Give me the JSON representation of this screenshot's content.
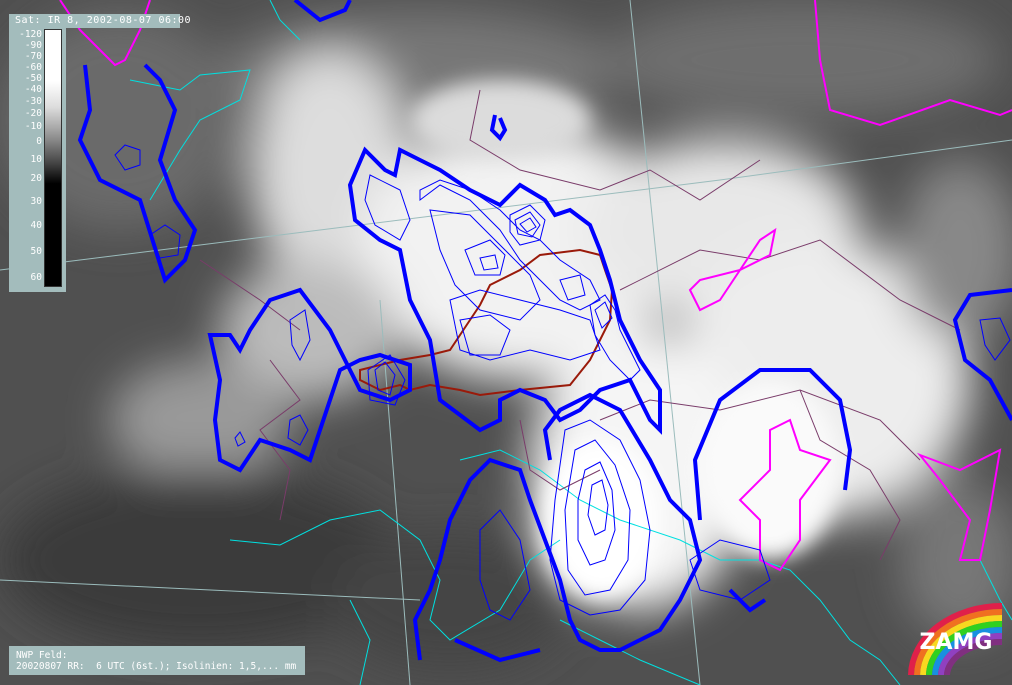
{
  "header": {
    "sat_title": "Sat: IR 8, 2002-08-07 06:00"
  },
  "scale": {
    "ticks": [
      "-120",
      "-90",
      "-70",
      "-60",
      "-50",
      "-40",
      "-30",
      "-20",
      "-10",
      "0",
      "10",
      "20",
      "30",
      "40",
      "50",
      "60"
    ]
  },
  "footer": {
    "line1": "NWP Feld:",
    "line2": "20020807 RR:  6 UTC (6st.); Isolinien: 1,5,... mm"
  },
  "logo": {
    "text": "ZAMG"
  },
  "colors": {
    "precip_contour": "#0000ff",
    "pressure_line": "#ff00ff",
    "coastline": "#00e0e0",
    "border": "#7a3c6a",
    "country_border": "#9a1a0a",
    "panel": "#a3bcbc"
  }
}
